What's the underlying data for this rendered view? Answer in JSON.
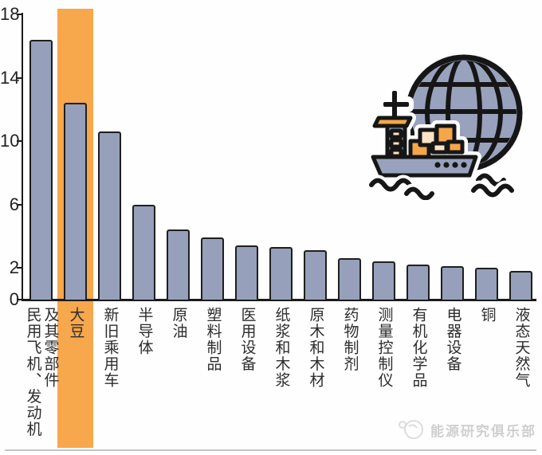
{
  "colors": {
    "bar_fill": "#96a0ba",
    "bar_stroke": "#1f1f1f",
    "highlight": "#f7a74c",
    "axis": "#1a1a1a",
    "label_text": "#2d2d2d",
    "watermark": "#cfcfcf",
    "icon_fill": "#99a2bc",
    "icon_orange": "#f5a64a",
    "icon_cream": "#fbe3c6",
    "icon_outline": "#161616",
    "divider": "#c4c4c4"
  },
  "chart_data": {
    "type": "bar",
    "title": "",
    "xlabel": "",
    "ylabel": "",
    "categories": [
      "民用飞机、发动机及其零部件",
      "大豆",
      "新旧乘用车",
      "半导体",
      "原油",
      "塑料制品",
      "医用设备",
      "纸浆和木浆",
      "原木和木材",
      "药物制剂",
      "测量控制仪",
      "有机化学品",
      "电器设备",
      "铜",
      "液态天然气"
    ],
    "values": [
      16.4,
      12.4,
      10.6,
      6.0,
      4.4,
      3.9,
      3.4,
      3.3,
      3.1,
      2.6,
      2.4,
      2.2,
      2.1,
      2.0,
      1.8
    ],
    "highlighted_category": "大豆",
    "highlighted_index": 1,
    "ylim": [
      0,
      18
    ],
    "yticks": [
      0,
      2,
      6,
      10,
      14,
      18
    ],
    "grid": false,
    "legend_position": "none",
    "label_wrap": {
      "0": 8
    }
  },
  "icon": {
    "name": "cargo-ship-globe-icon"
  },
  "watermark": {
    "text": "能源研究俱乐部"
  }
}
